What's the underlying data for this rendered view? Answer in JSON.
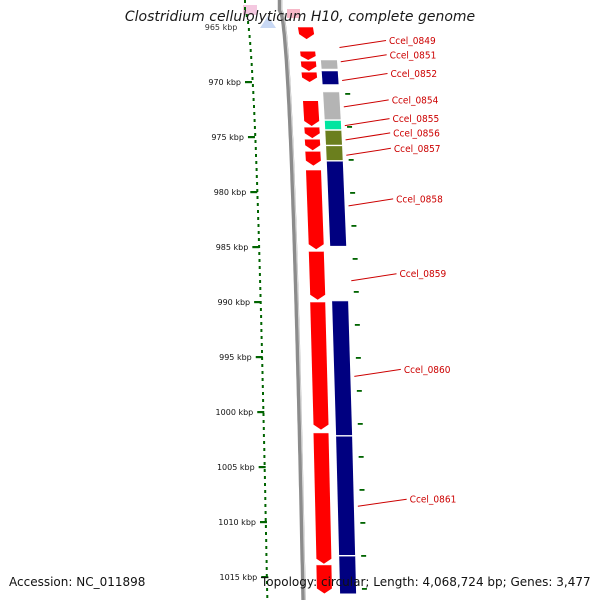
{
  "title": "Clostridium cellulolyticum H10, complete genome",
  "footer": {
    "accession": "Accession: NC_011898",
    "summary": "Topology: circular; Length: 4,068,724 bp; Genes: 3,477"
  },
  "colors": {
    "backbone": "#8c8c8c",
    "forward_gene": "#ff0000",
    "reverse_gene": "#000080",
    "tick": "#006400",
    "label": "#cc0000",
    "gray_gene": "#b4b4b4",
    "teal_gene": "#00e5a0",
    "olive_gene": "#6b7f1e"
  },
  "ticks": [
    {
      "label": "970 kbp",
      "kbp": 970
    },
    {
      "label": "975 kbp",
      "kbp": 975
    },
    {
      "label": "980 kbp",
      "kbp": 980
    },
    {
      "label": "985 kbp",
      "kbp": 985
    },
    {
      "label": "990 kbp",
      "kbp": 990
    },
    {
      "label": "995 kbp",
      "kbp": 995
    },
    {
      "label": "1000 kbp",
      "kbp": 1000
    },
    {
      "label": "1005 kbp",
      "kbp": 1005
    },
    {
      "label": "1010 kbp",
      "kbp": 1010
    },
    {
      "label": "1015 kbp",
      "kbp": 1015
    }
  ],
  "top_tick_label": "965 kbp",
  "forward_features": [
    {
      "start": 965.0,
      "end": 966.1,
      "color": "#ff0000"
    },
    {
      "start": 967.2,
      "end": 968.0,
      "color": "#ff0000"
    },
    {
      "start": 968.1,
      "end": 969.0,
      "color": "#ff0000"
    },
    {
      "start": 969.1,
      "end": 970.0,
      "color": "#ff0000"
    },
    {
      "start": 971.7,
      "end": 974.0,
      "color": "#ff0000"
    },
    {
      "start": 974.1,
      "end": 975.1,
      "color": "#ff0000"
    },
    {
      "start": 975.2,
      "end": 976.2,
      "color": "#ff0000"
    },
    {
      "start": 976.3,
      "end": 977.6,
      "color": "#ff0000"
    },
    {
      "start": 978.0,
      "end": 985.2,
      "color": "#ff0000"
    },
    {
      "start": 985.4,
      "end": 989.8,
      "color": "#ff0000"
    },
    {
      "start": 990.0,
      "end": 1001.6,
      "color": "#ff0000"
    },
    {
      "start": 1001.9,
      "end": 1013.8,
      "color": "#ff0000"
    },
    {
      "start": 1013.9,
      "end": 1016.5,
      "color": "#ff0000"
    }
  ],
  "reverse_features": [
    {
      "start": 968.0,
      "end": 968.8,
      "color": "#b4b4b4"
    },
    {
      "start": 969.0,
      "end": 970.2,
      "color": "#000080"
    },
    {
      "start": 970.9,
      "end": 973.4,
      "color": "#b4b4b4"
    },
    {
      "start": 973.5,
      "end": 974.3,
      "color": "#00e5a0"
    },
    {
      "start": 974.4,
      "end": 975.7,
      "color": "#6b7f1e"
    },
    {
      "start": 975.8,
      "end": 977.1,
      "color": "#6b7f1e"
    },
    {
      "start": 977.2,
      "end": 984.9,
      "color": "#000080"
    },
    {
      "start": 989.9,
      "end": 1002.1,
      "color": "#000080"
    },
    {
      "start": 1002.2,
      "end": 1013.0,
      "color": "#000080"
    },
    {
      "start": 1013.1,
      "end": 1016.5,
      "color": "#000080"
    }
  ],
  "gene_labels": [
    {
      "name": "Ccel_0849",
      "kbp": 966.5
    },
    {
      "name": "Ccel_0851",
      "kbp": 967.8
    },
    {
      "name": "Ccel_0852",
      "kbp": 969.5
    },
    {
      "name": "Ccel_0854",
      "kbp": 971.9
    },
    {
      "name": "Ccel_0855",
      "kbp": 973.6
    },
    {
      "name": "Ccel_0856",
      "kbp": 974.9
    },
    {
      "name": "Ccel_0857",
      "kbp": 976.3
    },
    {
      "name": "Ccel_0858",
      "kbp": 980.9
    },
    {
      "name": "Ccel_0859",
      "kbp": 987.7
    },
    {
      "name": "Ccel_0860",
      "kbp": 996.4
    },
    {
      "name": "Ccel_0861",
      "kbp": 1008.2
    }
  ]
}
